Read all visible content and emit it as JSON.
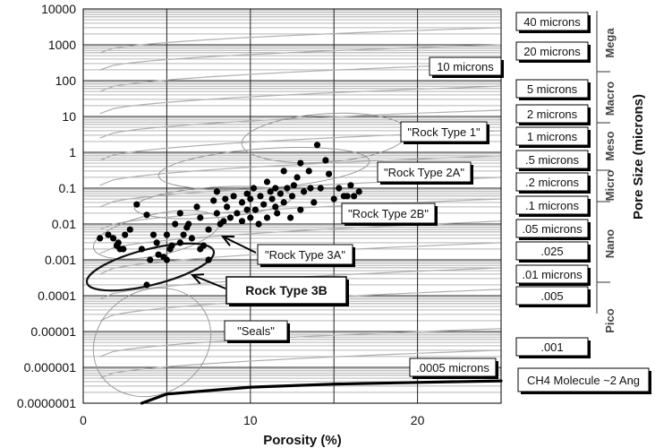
{
  "chart_data": {
    "type": "scatter",
    "xlabel": "Porosity (%)",
    "ylabel": "",
    "right_axis_label": "Pore Size (microns)",
    "xlim": [
      0,
      25
    ],
    "ylim": [
      1e-07,
      10000
    ],
    "y_scale": "log",
    "x_ticks": [
      "0",
      "10",
      "20"
    ],
    "y_ticks": [
      "10000",
      "1000",
      "100",
      "10",
      "1",
      "0.1",
      "0.01",
      "0.001",
      "0.0001",
      "0.00001",
      "0.000001",
      "0.0000001"
    ],
    "grid": "on",
    "points": [
      [
        1.0,
        0.004
      ],
      [
        1.5,
        0.005
      ],
      [
        1.8,
        0.004
      ],
      [
        2.0,
        0.0025
      ],
      [
        2.1,
        0.003
      ],
      [
        2.2,
        0.002
      ],
      [
        2.4,
        0.002
      ],
      [
        2.5,
        0.005
      ],
      [
        2.8,
        0.007
      ],
      [
        3.2,
        0.035
      ],
      [
        3.5,
        0.002
      ],
      [
        3.8,
        0.018
      ],
      [
        3.8,
        0.0002
      ],
      [
        4.0,
        0.001
      ],
      [
        4.2,
        0.005
      ],
      [
        4.4,
        0.003
      ],
      [
        4.5,
        0.0014
      ],
      [
        4.8,
        0.0012
      ],
      [
        5.0,
        0.001
      ],
      [
        5.0,
        0.005
      ],
      [
        5.2,
        0.002
      ],
      [
        5.3,
        0.0025
      ],
      [
        5.5,
        0.01
      ],
      [
        5.8,
        0.003
      ],
      [
        5.8,
        0.02
      ],
      [
        6.0,
        0.005
      ],
      [
        6.2,
        0.008
      ],
      [
        6.3,
        0.01
      ],
      [
        6.5,
        0.004
      ],
      [
        6.8,
        0.03
      ],
      [
        7.0,
        0.002
      ],
      [
        7.0,
        0.015
      ],
      [
        7.2,
        0.0025
      ],
      [
        7.5,
        0.007
      ],
      [
        7.5,
        0.001
      ],
      [
        7.8,
        0.045
      ],
      [
        8.0,
        0.02
      ],
      [
        8.0,
        0.08
      ],
      [
        8.2,
        0.01
      ],
      [
        8.5,
        0.05
      ],
      [
        8.6,
        0.03
      ],
      [
        8.8,
        0.015
      ],
      [
        9.0,
        0.06
      ],
      [
        9.2,
        0.02
      ],
      [
        9.5,
        0.04
      ],
      [
        9.5,
        0.012
      ],
      [
        9.8,
        0.07
      ],
      [
        10.0,
        0.015
      ],
      [
        10.0,
        0.05
      ],
      [
        10.2,
        0.1
      ],
      [
        10.3,
        0.025
      ],
      [
        10.5,
        0.01
      ],
      [
        10.6,
        0.06
      ],
      [
        10.8,
        0.035
      ],
      [
        11.0,
        0.015
      ],
      [
        11.0,
        0.15
      ],
      [
        11.3,
        0.05
      ],
      [
        11.5,
        0.1
      ],
      [
        11.6,
        0.02
      ],
      [
        11.8,
        0.07
      ],
      [
        12.0,
        0.3
      ],
      [
        12.0,
        0.04
      ],
      [
        12.2,
        0.1
      ],
      [
        12.4,
        0.015
      ],
      [
        12.5,
        0.06
      ],
      [
        12.8,
        0.2
      ],
      [
        13.0,
        0.025
      ],
      [
        13.0,
        0.5
      ],
      [
        13.2,
        0.08
      ],
      [
        13.5,
        0.3
      ],
      [
        13.6,
        0.1
      ],
      [
        13.8,
        0.04
      ],
      [
        14.0,
        1.6
      ],
      [
        14.2,
        0.1
      ],
      [
        14.5,
        0.6
      ],
      [
        14.7,
        0.25
      ],
      [
        15.0,
        0.05
      ],
      [
        15.3,
        0.1
      ],
      [
        15.6,
        0.06
      ],
      [
        15.8,
        0.06
      ],
      [
        16.0,
        0.12
      ],
      [
        16.2,
        0.06
      ],
      [
        16.5,
        0.08
      ],
      [
        11.5,
        0.03
      ],
      [
        9.8,
        0.025
      ],
      [
        8.4,
        0.012
      ],
      [
        11.2,
        0.08
      ],
      [
        12.6,
        0.12
      ]
    ],
    "pore_size_lines": [
      {
        "label": "40 microns",
        "y0": 600,
        "y1": 3000
      },
      {
        "label": "20 microns",
        "y0": 200,
        "y1": 1000
      },
      {
        "label": "10 microns",
        "y0": 50,
        "y1": 300
      },
      {
        "label": "5 microns",
        "y0": 12,
        "y1": 70
      },
      {
        "label": "2 microns",
        "y0": 2.5,
        "y1": 15
      },
      {
        "label": "1 microns",
        "y0": 0.6,
        "y1": 4
      },
      {
        "label": ".5 microns",
        "y0": 0.12,
        "y1": 0.8
      },
      {
        "label": ".2 microns",
        "y0": 0.03,
        "y1": 0.2
      },
      {
        "label": ".1 microns",
        "y0": 0.007,
        "y1": 0.05
      },
      {
        "label": ".05 microns",
        "y0": 0.0015,
        "y1": 0.012
      },
      {
        "label": ".025",
        "y0": 0.0004,
        "y1": 0.003
      },
      {
        "label": ".01 microns",
        "y0": 8e-05,
        "y1": 0.0006
      },
      {
        "label": ".005",
        "y0": 2e-05,
        "y1": 0.00015
      },
      {
        "label": ".001",
        "y0": 2e-06,
        "y1": 1.2e-05
      },
      {
        "label": ".0005 microns",
        "y0": 5e-07,
        "y1": 3e-06
      }
    ],
    "ch4_line": {
      "label": "CH4 Molecule ~2 Ang",
      "points": [
        [
          3.5,
          1e-07
        ],
        [
          5,
          1.8e-07
        ],
        [
          10,
          2.8e-07
        ],
        [
          15,
          3.4e-07
        ],
        [
          20,
          3.8e-07
        ],
        [
          25,
          4.2e-07
        ]
      ]
    },
    "pore_size_categories": [
      "Mega",
      "Macro",
      "Meso",
      "Micro",
      "Nano",
      "Pico"
    ],
    "annotations": [
      {
        "label": "\"Rock Type 1\"",
        "bold": false
      },
      {
        "label": "\"Rock Type 2A\"",
        "bold": false
      },
      {
        "label": "\"Rock Type 2B\"",
        "bold": false
      },
      {
        "label": "\"Rock Type 3A\"",
        "bold": false
      },
      {
        "label": "Rock Type 3B",
        "bold": true
      },
      {
        "label": "\"Seals\"",
        "bold": false
      }
    ]
  }
}
